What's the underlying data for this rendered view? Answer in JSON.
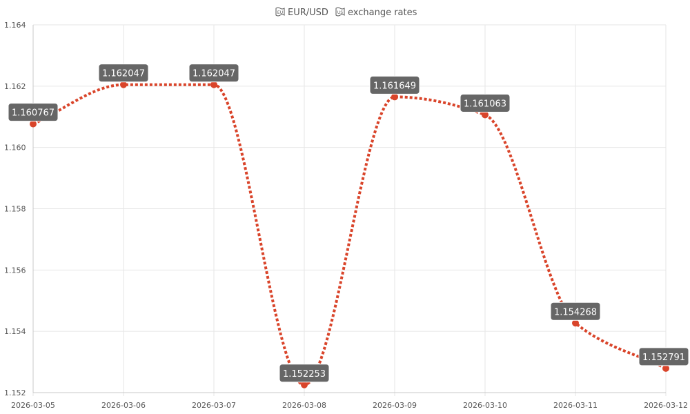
{
  "title": {
    "prefix_icon": "eu-flag-icon",
    "text_part1": "EUR/USD",
    "mid_icon": "us-flag-icon",
    "text_part2": "exchange rates"
  },
  "colors": {
    "line": "#d9442a",
    "point": "#d9442a",
    "label_bg": "#666666",
    "label_text": "#ffffff"
  },
  "chart_data": {
    "type": "line",
    "title": "EUR/USD exchange rates",
    "x": [
      "2026-03-05",
      "2026-03-06",
      "2026-03-07",
      "2026-03-08",
      "2026-03-09",
      "2026-03-10",
      "2026-03-11",
      "2026-03-12"
    ],
    "series": [
      {
        "values": [
          1.160767,
          1.162047,
          1.162047,
          1.152253,
          1.161649,
          1.161063,
          1.154268,
          1.152791
        ],
        "data_labels": [
          "1.160767",
          "1.162047",
          "1.162047",
          "1.152253",
          "1.161649",
          "1.161063",
          "1.154268",
          "1.152791"
        ],
        "line_style": "dotted",
        "smooth": true
      }
    ],
    "ylim": [
      1.152,
      1.164
    ],
    "yticks": [
      "1.152",
      "1.154",
      "1.156",
      "1.158",
      "1.160",
      "1.162",
      "1.164"
    ],
    "grid": true,
    "legend": "none"
  }
}
